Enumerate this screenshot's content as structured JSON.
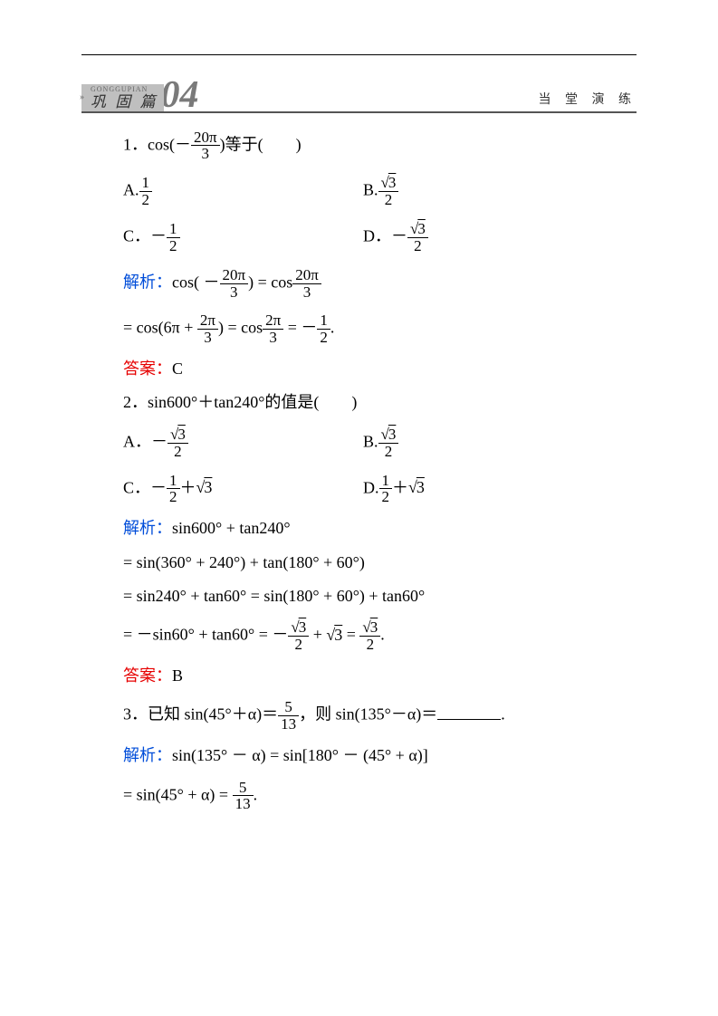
{
  "banner": {
    "en": "GONGGUPIAN",
    "cn": "巩 固 篇",
    "num": "04",
    "right": "当 堂 演 练"
  },
  "q1": {
    "stem_pre": "1．cos(－",
    "frac_n": "20π",
    "frac_d": "3",
    "stem_post": ")等于(　　)",
    "A_pre": "A.",
    "A_n": "1",
    "A_d": "2",
    "B_pre": "B.",
    "B_n": "√3",
    "B_d": "2",
    "C_pre": "C．－",
    "C_n": "1",
    "C_d": "2",
    "D_pre": "D．－",
    "D_n": "√3",
    "D_d": "2",
    "sol_label": "解析：",
    "s1_a": "cos( －",
    "s1_n1": "20π",
    "s1_d1": "3",
    "s1_b": ") = cos",
    "s1_n2": "20π",
    "s1_d2": "3",
    "s2_a": " = cos(6π + ",
    "s2_n1": "2π",
    "s2_d1": "3",
    "s2_b": ") = cos",
    "s2_n2": "2π",
    "s2_d2": "3",
    "s2_c": " = －",
    "s2_n3": "1",
    "s2_d3": "2",
    "s2_d": ".",
    "ans_label": "答案：",
    "ans": "C"
  },
  "q2": {
    "stem": "2．sin600°＋tan240°的值是(　　)",
    "A_pre": "A．－",
    "A_n": "√3",
    "A_d": "2",
    "B_pre": "B.",
    "B_n": "√3",
    "B_d": "2",
    "C_pre": "C．－",
    "C_n": "1",
    "C_d": "2",
    "C_post": "＋√3",
    "D_pre": "D.",
    "D_n": "1",
    "D_d": "2",
    "D_post": "＋√3",
    "sol_label": "解析：",
    "s1": "sin600° + tan240°",
    "s2": " = sin(360° + 240°) + tan(180° + 60°)",
    "s3": " = sin240° + tan60° = sin(180° + 60°) + tan60°",
    "s4_a": " = －sin60° + tan60° = －",
    "s4_n1": "√3",
    "s4_d1": "2",
    "s4_b": " + √3 = ",
    "s4_n2": "√3",
    "s4_d2": "2",
    "s4_c": ".",
    "ans_label": "答案：",
    "ans": "B"
  },
  "q3": {
    "stem_a": "3．已知 sin(45°＋α)＝",
    "stem_n": "5",
    "stem_d": "13",
    "stem_b": "，则 sin(135°－α)＝",
    "stem_c": ".",
    "sol_label": "解析：",
    "s1": "sin(135° － α) = sin[180° － (45° + α)]",
    "s2_a": " = sin(45° + α) = ",
    "s2_n": "5",
    "s2_d": "13",
    "s2_b": "."
  },
  "colors": {
    "blue": "#004dd9",
    "red": "#e60000",
    "grey_badge": "#bfbfbf",
    "grey_num": "#7a7a7a"
  }
}
